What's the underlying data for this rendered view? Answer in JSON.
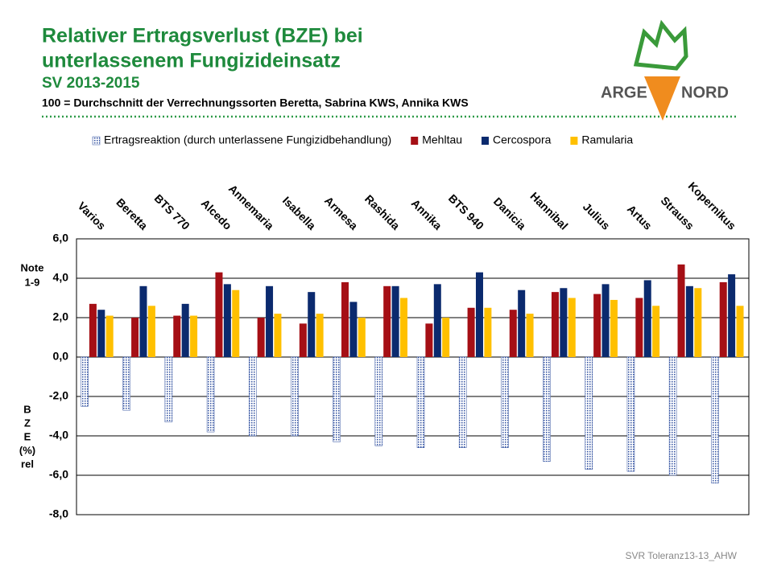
{
  "chart_data": {
    "type": "bar",
    "title": [
      "Relativer Ertragsverlust (BZE) bei",
      "unterlassenem Fungizideinsatz"
    ],
    "subtitle": "SV 2013-2015",
    "note": "100 = Durchschnitt der Verrechnungssorten Beretta, Sabrina KWS, Annika KWS",
    "y_label_upper": [
      "Note",
      "1-9"
    ],
    "y_label_lower": [
      "B",
      "Z",
      "E",
      "(%)",
      "rel"
    ],
    "footer": "SVR Toleranz13-13_AHW",
    "logo": [
      "ARGE",
      "NORD"
    ],
    "categories": [
      "Varios",
      "Beretta",
      "BTS 770",
      "Alcedo",
      "Annemaria",
      "Isabella",
      "Armesa",
      "Rashida",
      "Annika",
      "BTS 940",
      "Danicia",
      "Hannibal",
      "Julius",
      "Artus",
      "Strauss",
      "Kopernikus"
    ],
    "series": [
      {
        "name": "Ertragsreaktion (durch unterlassene Fungizidbehandlung)",
        "color": "#2f4f9f",
        "pattern": "dots",
        "values": [
          -2.5,
          -2.7,
          -3.3,
          -3.8,
          -4.0,
          -4.0,
          -4.3,
          -4.5,
          -4.6,
          -4.6,
          -4.6,
          -5.3,
          -5.7,
          -5.8,
          -6.0,
          -6.4
        ]
      },
      {
        "name": "Mehltau",
        "color": "#a50f15",
        "values": [
          2.7,
          2.0,
          2.1,
          4.3,
          2.0,
          1.7,
          3.8,
          3.6,
          1.7,
          2.5,
          2.4,
          3.3,
          3.2,
          3.0,
          4.7,
          3.8
        ]
      },
      {
        "name": "Cercospora",
        "color": "#0b2a6e",
        "values": [
          2.4,
          3.6,
          2.7,
          3.7,
          3.6,
          3.3,
          2.8,
          3.6,
          3.7,
          4.3,
          3.4,
          3.5,
          3.7,
          3.9,
          3.6,
          4.2
        ]
      },
      {
        "name": "Ramularia",
        "color": "#ffc000",
        "values": [
          2.1,
          2.6,
          2.1,
          3.4,
          2.2,
          2.2,
          2.0,
          3.0,
          2.0,
          2.5,
          2.2,
          3.0,
          2.9,
          2.6,
          3.5,
          2.6
        ]
      }
    ],
    "ylim": [
      -8,
      6
    ],
    "yticks": [
      {
        "value": -8,
        "label": "-8,0"
      },
      {
        "value": -6,
        "label": "-6,0"
      },
      {
        "value": -4,
        "label": "-4,0"
      },
      {
        "value": -2,
        "label": "-2,0"
      },
      {
        "value": 0,
        "label": "0,0"
      },
      {
        "value": 2,
        "label": "2,0"
      },
      {
        "value": 4,
        "label": "4,0"
      },
      {
        "value": 6,
        "label": "6,0"
      }
    ],
    "grid": true,
    "legend": "top"
  }
}
